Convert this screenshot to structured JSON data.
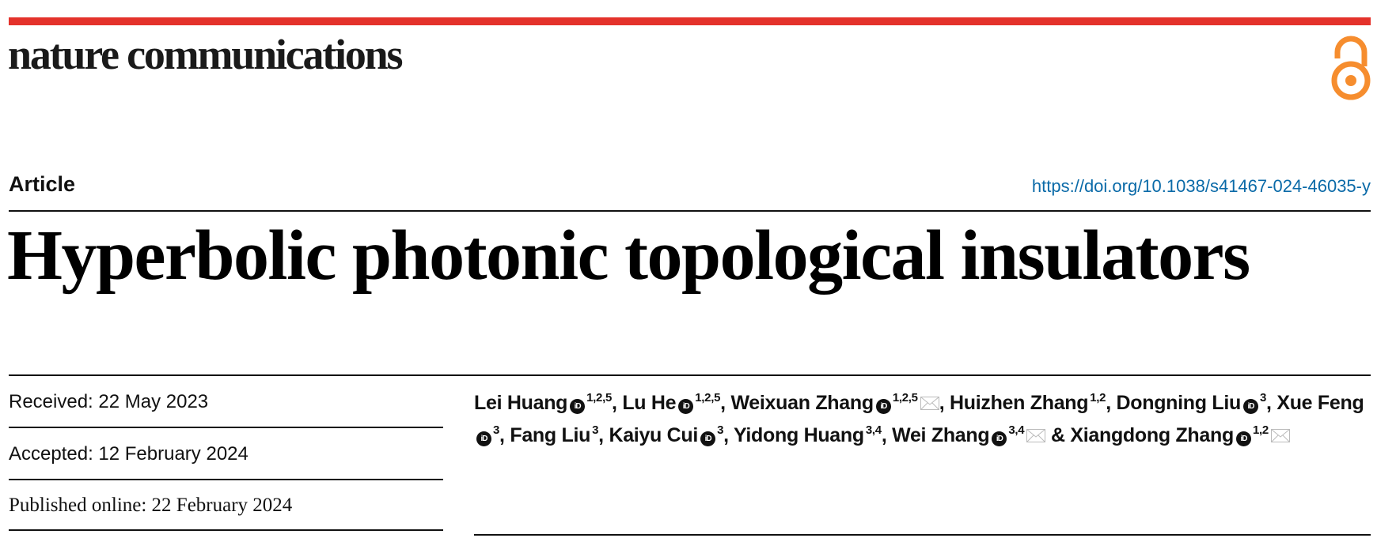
{
  "journal": {
    "name": "nature communications",
    "open_access_icon": "open-access-lock-icon",
    "brand_color": "#e4322b",
    "oa_color": "#f68d2e"
  },
  "article": {
    "type": "Article",
    "doi": "https://doi.org/10.1038/s41467-024-46035-y",
    "title": "Hyperbolic photonic topological insulators"
  },
  "dates": {
    "received": "Received: 22 May 2023",
    "accepted": "Accepted: 12 February 2024",
    "published": "Published online: 22 February 2024"
  },
  "authors": [
    {
      "name": "Lei Huang",
      "orcid": true,
      "aff": "1,2,5",
      "email": false,
      "sep": ", "
    },
    {
      "name": "Lu He",
      "orcid": true,
      "aff": "1,2,5",
      "email": false,
      "sep": ", "
    },
    {
      "name": "Weixuan Zhang",
      "orcid": true,
      "aff": "1,2,5",
      "email": true,
      "sep": ", "
    },
    {
      "name": "Huizhen Zhang",
      "orcid": false,
      "aff": "1,2",
      "email": false,
      "sep": ", "
    },
    {
      "name": "Dongning Liu",
      "orcid": true,
      "aff": "3",
      "email": false,
      "sep": ", "
    },
    {
      "name": "Xue Feng",
      "orcid": true,
      "aff": "3",
      "email": false,
      "sep": ", "
    },
    {
      "name": "Fang Liu",
      "orcid": false,
      "aff": "3",
      "email": false,
      "sep": ", "
    },
    {
      "name": "Kaiyu Cui",
      "orcid": true,
      "aff": "3",
      "email": false,
      "sep": ", "
    },
    {
      "name": "Yidong Huang",
      "orcid": false,
      "aff": "3,4",
      "email": false,
      "sep": ", "
    },
    {
      "name": "Wei Zhang",
      "orcid": true,
      "aff": "3,4",
      "email": true,
      "sep": " & "
    },
    {
      "name": "Xiangdong Zhang",
      "orcid": true,
      "aff": "1,2",
      "email": true,
      "sep": ""
    }
  ]
}
